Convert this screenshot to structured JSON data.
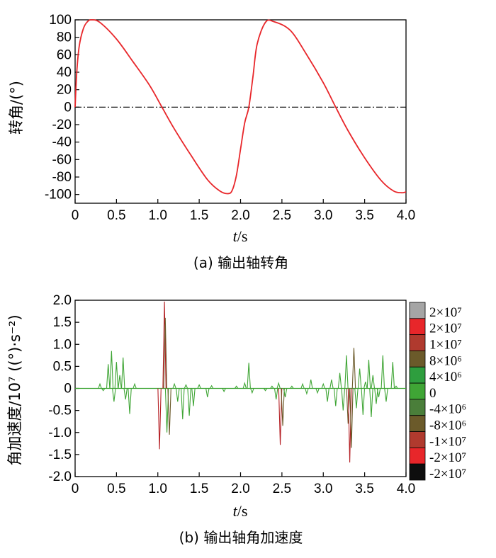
{
  "chart_data": [
    {
      "type": "line",
      "title": "",
      "caption": "(a) 输出轴转角",
      "xlabel_italic": "t",
      "xlabel_unit": "/s",
      "ylabel": "转角/(°)",
      "xlim": [
        0,
        4.0
      ],
      "ylim": [
        -110,
        100
      ],
      "x_ticks": [
        "0",
        "0.5",
        "1.0",
        "1.5",
        "2.0",
        "2.5",
        "3.0",
        "3.5",
        "4.0"
      ],
      "y_ticks": [
        "100",
        "80",
        "60",
        "40",
        "20",
        "0",
        "-20",
        "-40",
        "-60",
        "-80",
        "-100"
      ],
      "reference_line": {
        "y": 0,
        "style": "dash-dot",
        "color": "#000000"
      },
      "series": [
        {
          "color": "#e8262a",
          "x": [
            0,
            0.02,
            0.05,
            0.1,
            0.15,
            0.2,
            0.3,
            0.5,
            0.7,
            0.9,
            1.05,
            1.2,
            1.4,
            1.6,
            1.75,
            1.85,
            1.9,
            1.95,
            2.0,
            2.05,
            2.1,
            2.15,
            2.2,
            2.3,
            2.4,
            2.6,
            2.8,
            3.0,
            3.15,
            3.3,
            3.5,
            3.7,
            3.85,
            3.95,
            4.0
          ],
          "y": [
            0,
            40,
            70,
            90,
            98,
            100,
            97,
            78,
            52,
            25,
            0,
            -25,
            -55,
            -83,
            -96,
            -99,
            -95,
            -78,
            -48,
            -18,
            0,
            35,
            72,
            97,
            98,
            88,
            60,
            28,
            0,
            -27,
            -58,
            -84,
            -96,
            -98,
            -97
          ]
        }
      ]
    },
    {
      "type": "line",
      "title": "",
      "caption": "(b) 输出轴角加速度",
      "xlabel_italic": "t",
      "xlabel_unit": "/s",
      "ylabel": "角加速度/10⁷ ((°)·s⁻²)",
      "xlim": [
        0,
        4.0
      ],
      "ylim": [
        -2.0,
        2.0
      ],
      "x_ticks": [
        "0",
        "0.5",
        "1.0",
        "1.5",
        "2.0",
        "2.5",
        "3.0",
        "3.5",
        "4.0"
      ],
      "y_ticks": [
        "2.0",
        "1.5",
        "1.0",
        "0.5",
        "0",
        "-0.5",
        "-1.0",
        "-1.5",
        "-2.0"
      ],
      "spikes": [
        {
          "t": 0.3,
          "v": 0.1,
          "c": "#3fa535"
        },
        {
          "t": 0.34,
          "v": -0.05,
          "c": "#3fa535"
        },
        {
          "t": 0.4,
          "v": 0.55,
          "c": "#3fa535"
        },
        {
          "t": 0.44,
          "v": 0.85,
          "c": "#3fa535"
        },
        {
          "t": 0.47,
          "v": -0.3,
          "c": "#3fa535"
        },
        {
          "t": 0.5,
          "v": 0.6,
          "c": "#3fa535"
        },
        {
          "t": 0.54,
          "v": 0.3,
          "c": "#3fa535"
        },
        {
          "t": 0.58,
          "v": 0.7,
          "c": "#3fa535"
        },
        {
          "t": 0.61,
          "v": -0.25,
          "c": "#3fa535"
        },
        {
          "t": 0.66,
          "v": -0.58,
          "c": "#3fa535"
        },
        {
          "t": 0.72,
          "v": 0.1,
          "c": "#3fa535"
        },
        {
          "t": 1.02,
          "v": -1.38,
          "c": "#b52025"
        },
        {
          "t": 1.08,
          "v": 1.97,
          "c": "#b52025"
        },
        {
          "t": 1.09,
          "v": 1.6,
          "c": "#6b5a2a"
        },
        {
          "t": 1.11,
          "v": -1.0,
          "c": "#3fa535"
        },
        {
          "t": 1.14,
          "v": -1.05,
          "c": "#6b5a2a"
        },
        {
          "t": 1.2,
          "v": 0.1,
          "c": "#3fa535"
        },
        {
          "t": 1.24,
          "v": -0.3,
          "c": "#3fa535"
        },
        {
          "t": 1.3,
          "v": -0.7,
          "c": "#3fa535"
        },
        {
          "t": 1.34,
          "v": 0.08,
          "c": "#3fa535"
        },
        {
          "t": 1.38,
          "v": -0.62,
          "c": "#3fa535"
        },
        {
          "t": 1.43,
          "v": -0.4,
          "c": "#3fa535"
        },
        {
          "t": 1.5,
          "v": 0.08,
          "c": "#3fa535"
        },
        {
          "t": 1.6,
          "v": -0.2,
          "c": "#3fa535"
        },
        {
          "t": 1.65,
          "v": 0.06,
          "c": "#3fa535"
        },
        {
          "t": 1.8,
          "v": -0.07,
          "c": "#3fa535"
        },
        {
          "t": 1.95,
          "v": 0.05,
          "c": "#3fa535"
        },
        {
          "t": 2.05,
          "v": 0.12,
          "c": "#3fa535"
        },
        {
          "t": 2.1,
          "v": 0.58,
          "c": "#3fa535"
        },
        {
          "t": 2.14,
          "v": -0.1,
          "c": "#3fa535"
        },
        {
          "t": 2.3,
          "v": -0.05,
          "c": "#3fa535"
        },
        {
          "t": 2.38,
          "v": 0.05,
          "c": "#3fa535"
        },
        {
          "t": 2.43,
          "v": -0.25,
          "c": "#3fa535"
        },
        {
          "t": 2.46,
          "v": 0.12,
          "c": "#3fa535"
        },
        {
          "t": 2.48,
          "v": -1.28,
          "c": "#b52025"
        },
        {
          "t": 2.51,
          "v": -0.85,
          "c": "#6b5a2a"
        },
        {
          "t": 2.54,
          "v": -0.2,
          "c": "#3fa535"
        },
        {
          "t": 2.62,
          "v": 0.05,
          "c": "#3fa535"
        },
        {
          "t": 2.75,
          "v": 0.1,
          "c": "#3fa535"
        },
        {
          "t": 2.8,
          "v": -0.12,
          "c": "#3fa535"
        },
        {
          "t": 2.85,
          "v": 0.2,
          "c": "#3fa535"
        },
        {
          "t": 2.93,
          "v": -0.1,
          "c": "#3fa535"
        },
        {
          "t": 3.0,
          "v": 0.1,
          "c": "#3fa535"
        },
        {
          "t": 3.05,
          "v": -0.3,
          "c": "#3fa535"
        },
        {
          "t": 3.1,
          "v": 0.2,
          "c": "#3fa535"
        },
        {
          "t": 3.15,
          "v": -0.4,
          "c": "#3fa535"
        },
        {
          "t": 3.2,
          "v": 0.35,
          "c": "#3fa535"
        },
        {
          "t": 3.24,
          "v": -0.5,
          "c": "#3fa535"
        },
        {
          "t": 3.28,
          "v": 0.75,
          "c": "#3fa535"
        },
        {
          "t": 3.3,
          "v": -0.8,
          "c": "#6b5a2a"
        },
        {
          "t": 3.32,
          "v": -1.68,
          "c": "#b52025"
        },
        {
          "t": 3.34,
          "v": -1.35,
          "c": "#6b5a2a"
        },
        {
          "t": 3.37,
          "v": 0.92,
          "c": "#6b5a2a"
        },
        {
          "t": 3.4,
          "v": -0.45,
          "c": "#3fa535"
        },
        {
          "t": 3.44,
          "v": 0.45,
          "c": "#3fa535"
        },
        {
          "t": 3.48,
          "v": -0.6,
          "c": "#3fa535"
        },
        {
          "t": 3.51,
          "v": 0.15,
          "c": "#3fa535"
        },
        {
          "t": 3.55,
          "v": 0.65,
          "c": "#3fa535"
        },
        {
          "t": 3.58,
          "v": -0.65,
          "c": "#3fa535"
        },
        {
          "t": 3.6,
          "v": 0.3,
          "c": "#3fa535"
        },
        {
          "t": 3.64,
          "v": -0.35,
          "c": "#3fa535"
        },
        {
          "t": 3.67,
          "v": -0.2,
          "c": "#3fa535"
        },
        {
          "t": 3.72,
          "v": 0.75,
          "c": "#3fa535"
        },
        {
          "t": 3.76,
          "v": -0.3,
          "c": "#3fa535"
        },
        {
          "t": 3.84,
          "v": 0.6,
          "c": "#3fa535"
        },
        {
          "t": 3.88,
          "v": 0.05,
          "c": "#3fa535"
        }
      ],
      "colorbar": {
        "entries": [
          {
            "label": "2×10⁷",
            "color": "#a5a5a5"
          },
          {
            "label": "2×10⁷",
            "color": "#e8262a"
          },
          {
            "label": "1×10⁷",
            "color": "#b03a2e"
          },
          {
            "label": "8×10⁶",
            "color": "#6b5a2a"
          },
          {
            "label": "4×10⁶",
            "color": "#2e9e3e"
          },
          {
            "label": "0",
            "color": "#3fa535"
          },
          {
            "label": "-4×10⁶",
            "color": "#4a7e3a"
          },
          {
            "label": "-8×10⁶",
            "color": "#6b5a2a"
          },
          {
            "label": "-1×10⁷",
            "color": "#b03a2e"
          },
          {
            "label": "-2×10⁷",
            "color": "#e8262a"
          },
          {
            "label": "-2×10⁷",
            "color": "#0e0e0e"
          }
        ]
      }
    }
  ]
}
